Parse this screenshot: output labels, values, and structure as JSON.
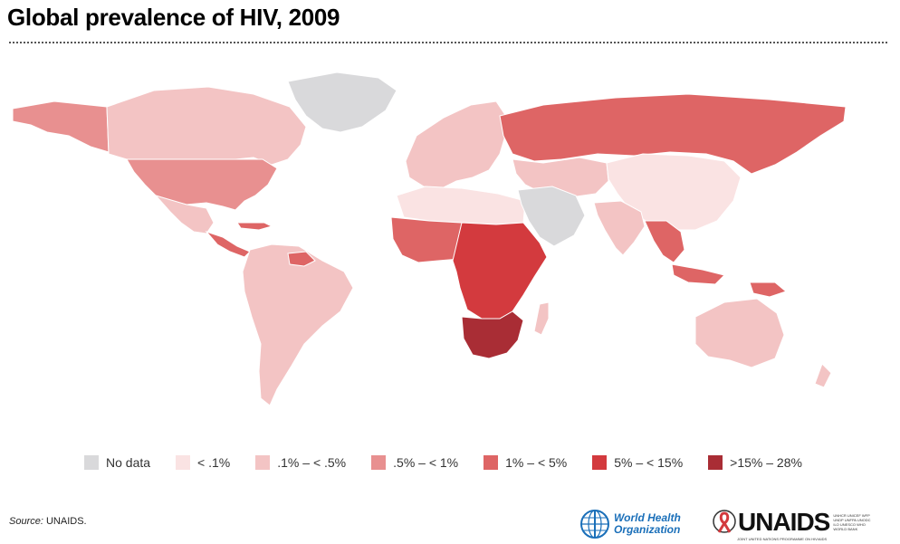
{
  "header": {
    "title": "Global prevalence of HIV, 2009"
  },
  "legend": {
    "items": [
      {
        "label": "No data",
        "color": "#d9d9db"
      },
      {
        "label": "< .1%",
        "color": "#fae3e3"
      },
      {
        "label": ".1% – < .5%",
        "color": "#f3c4c4"
      },
      {
        "label": ".5% – < 1%",
        "color": "#e89090"
      },
      {
        "label": "1% – < 5%",
        "color": "#de6565"
      },
      {
        "label": "5% – < 15%",
        "color": "#d33a3e"
      },
      {
        "label": ">15% – 28%",
        "color": "#a92d35"
      }
    ]
  },
  "regions": [
    {
      "name": "Greenland",
      "category": "No data"
    },
    {
      "name": "Canada",
      "category": ".1% – < .5%"
    },
    {
      "name": "Alaska",
      "category": ".5% – < 1%"
    },
    {
      "name": "United States",
      "category": ".5% – < 1%"
    },
    {
      "name": "Mexico",
      "category": ".1% – < .5%"
    },
    {
      "name": "Central America & Caribbean",
      "category": "1% – < 5%"
    },
    {
      "name": "South America",
      "category": ".1% – < .5%"
    },
    {
      "name": "Guianas",
      "category": "1% – < 5%"
    },
    {
      "name": "Europe",
      "category": ".1% – < .5%"
    },
    {
      "name": "Russia",
      "category": "1% – < 5%"
    },
    {
      "name": "North Africa",
      "category": "< .1%"
    },
    {
      "name": "Arabian Peninsula",
      "category": "No data"
    },
    {
      "name": "West Africa",
      "category": "1% – < 5%"
    },
    {
      "name": "Central & East Africa",
      "category": "5% – < 15%"
    },
    {
      "name": "Southern Africa",
      "category": ">15% – 28%"
    },
    {
      "name": "Madagascar",
      "category": ".1% – < .5%"
    },
    {
      "name": "Central Asia",
      "category": ".1% – < .5%"
    },
    {
      "name": "China",
      "category": "< .1%"
    },
    {
      "name": "India",
      "category": ".1% – < .5%"
    },
    {
      "name": "Southeast Asia",
      "category": "1% – < 5%"
    },
    {
      "name": "Australia",
      "category": ".1% – < .5%"
    },
    {
      "name": "Papua New Guinea",
      "category": "1% – < 5%"
    }
  ],
  "footer": {
    "source_label": "Source:",
    "source_text": "UNAIDS.",
    "who_line1": "World Health",
    "who_line2": "Organization",
    "unaids_word": "UNAIDS",
    "unaids_agencies": "UNHCR UNICEF WFP UNDP UNFPA UNODC ILO UNESCO WHO WORLD BANK",
    "unaids_tagline": "JOINT UNITED NATIONS PROGRAMME ON HIV/AIDS"
  }
}
